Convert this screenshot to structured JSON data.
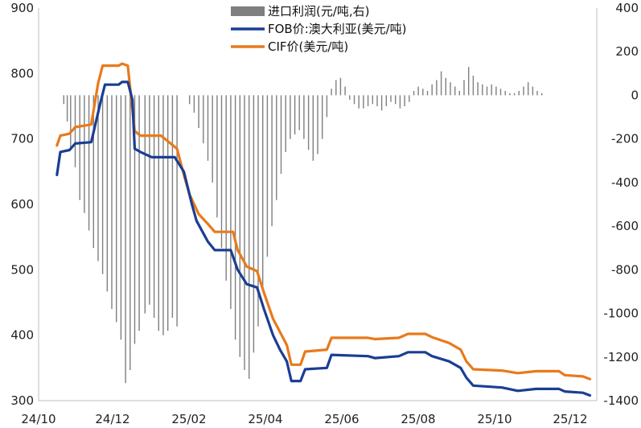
{
  "chart_data": {
    "type": "bar+line",
    "x_ticks": [
      "24/10",
      "24/12",
      "25/02",
      "25/04",
      "25/06",
      "25/08",
      "25/10",
      "25/12"
    ],
    "left_axis": {
      "ticks": [
        300,
        400,
        500,
        600,
        700,
        800,
        900
      ],
      "range": [
        300,
        900
      ]
    },
    "right_axis": {
      "ticks": [
        -1400,
        -1200,
        -1000,
        -800,
        -600,
        -400,
        -200,
        0,
        200,
        400
      ],
      "range": [
        -1400,
        400
      ]
    },
    "grid": false,
    "legend_position": "top-center",
    "series": [
      {
        "name": "进口利润(元/吨,右)",
        "kind": "bar",
        "axis": "right",
        "color": "#7f7f7f",
        "points": [
          [
            "2024-10-20",
            0
          ],
          [
            "2024-10-23",
            -40
          ],
          [
            "2024-10-26",
            -120
          ],
          [
            "2024-10-29",
            -250
          ],
          [
            "2024-11-02",
            -330
          ],
          [
            "2024-11-06",
            -480
          ],
          [
            "2024-11-10",
            -540
          ],
          [
            "2024-11-14",
            -620
          ],
          [
            "2024-11-18",
            -700
          ],
          [
            "2024-11-22",
            -760
          ],
          [
            "2024-11-26",
            -820
          ],
          [
            "2024-11-30",
            -900
          ],
          [
            "2024-12-04",
            -980
          ],
          [
            "2024-12-08",
            -1040
          ],
          [
            "2024-12-12",
            -1120
          ],
          [
            "2024-12-16",
            -1320
          ],
          [
            "2024-12-20",
            -1260
          ],
          [
            "2024-12-24",
            -1140
          ],
          [
            "2024-12-28",
            -1080
          ],
          [
            "2025-01-02",
            -1000
          ],
          [
            "2025-01-06",
            -960
          ],
          [
            "2025-01-10",
            -1020
          ],
          [
            "2025-01-14",
            -1080
          ],
          [
            "2025-01-18",
            -1100
          ],
          [
            "2025-01-22",
            -1080
          ],
          [
            "2025-01-26",
            -1020
          ],
          [
            "2025-01-30",
            -1060
          ],
          [
            "2025-02-10",
            -40
          ],
          [
            "2025-02-14",
            -80
          ],
          [
            "2025-02-18",
            -150
          ],
          [
            "2025-02-22",
            -220
          ],
          [
            "2025-02-26",
            -300
          ],
          [
            "2025-03-02",
            -400
          ],
          [
            "2025-03-06",
            -560
          ],
          [
            "2025-03-10",
            -700
          ],
          [
            "2025-03-14",
            -850
          ],
          [
            "2025-03-18",
            -980
          ],
          [
            "2025-03-22",
            -1120
          ],
          [
            "2025-03-26",
            -1200
          ],
          [
            "2025-03-30",
            -1260
          ],
          [
            "2025-04-03",
            -1300
          ],
          [
            "2025-04-07",
            -1180
          ],
          [
            "2025-04-11",
            -1060
          ],
          [
            "2025-04-15",
            -900
          ],
          [
            "2025-04-19",
            -740
          ],
          [
            "2025-04-23",
            -600
          ],
          [
            "2025-04-27",
            -480
          ],
          [
            "2025-05-01",
            -360
          ],
          [
            "2025-05-05",
            -260
          ],
          [
            "2025-05-09",
            -200
          ],
          [
            "2025-05-13",
            -180
          ],
          [
            "2025-05-17",
            -160
          ],
          [
            "2025-05-21",
            -200
          ],
          [
            "2025-05-25",
            -250
          ],
          [
            "2025-05-29",
            -300
          ],
          [
            "2025-06-02",
            -270
          ],
          [
            "2025-06-06",
            -200
          ],
          [
            "2025-06-10",
            -100
          ],
          [
            "2025-06-14",
            30
          ],
          [
            "2025-06-18",
            70
          ],
          [
            "2025-06-22",
            80
          ],
          [
            "2025-06-26",
            40
          ],
          [
            "2025-06-30",
            -20
          ],
          [
            "2025-07-04",
            -40
          ],
          [
            "2025-07-08",
            -60
          ],
          [
            "2025-07-12",
            -60
          ],
          [
            "2025-07-16",
            -50
          ],
          [
            "2025-07-20",
            -40
          ],
          [
            "2025-07-24",
            -50
          ],
          [
            "2025-07-28",
            -70
          ],
          [
            "2025-08-01",
            -50
          ],
          [
            "2025-08-05",
            -30
          ],
          [
            "2025-08-09",
            -40
          ],
          [
            "2025-08-13",
            -60
          ],
          [
            "2025-08-17",
            -50
          ],
          [
            "2025-08-21",
            -30
          ],
          [
            "2025-08-25",
            20
          ],
          [
            "2025-08-29",
            40
          ],
          [
            "2025-09-02",
            30
          ],
          [
            "2025-09-06",
            20
          ],
          [
            "2025-09-10",
            50
          ],
          [
            "2025-09-14",
            70
          ],
          [
            "2025-09-18",
            110
          ],
          [
            "2025-09-22",
            80
          ],
          [
            "2025-09-26",
            60
          ],
          [
            "2025-09-30",
            40
          ],
          [
            "2025-10-04",
            20
          ],
          [
            "2025-10-08",
            70
          ],
          [
            "2025-10-12",
            130
          ],
          [
            "2025-10-16",
            90
          ],
          [
            "2025-10-20",
            60
          ],
          [
            "2025-10-24",
            50
          ],
          [
            "2025-10-28",
            40
          ],
          [
            "2025-11-01",
            50
          ],
          [
            "2025-11-05",
            40
          ],
          [
            "2025-11-09",
            30
          ],
          [
            "2025-11-13",
            20
          ],
          [
            "2025-11-17",
            10
          ],
          [
            "2025-11-21",
            10
          ],
          [
            "2025-11-25",
            20
          ],
          [
            "2025-11-29",
            40
          ],
          [
            "2025-12-03",
            60
          ],
          [
            "2025-12-07",
            40
          ],
          [
            "2025-12-11",
            20
          ],
          [
            "2025-12-15",
            10
          ],
          [
            "2025-12-19",
            0
          ]
        ]
      },
      {
        "name": "FOB价:澳大利亚(美元/吨)",
        "kind": "line",
        "axis": "left",
        "color": "#1a3e94",
        "points": [
          [
            "2024-10-17",
            645
          ],
          [
            "2024-10-20",
            680
          ],
          [
            "2024-10-28",
            683
          ],
          [
            "2024-11-02",
            693
          ],
          [
            "2024-11-16",
            695
          ],
          [
            "2024-11-24",
            755
          ],
          [
            "2024-11-28",
            783
          ],
          [
            "2024-12-10",
            783
          ],
          [
            "2024-12-13",
            787
          ],
          [
            "2024-12-18",
            787
          ],
          [
            "2024-12-22",
            760
          ],
          [
            "2024-12-24",
            685
          ],
          [
            "2024-12-29",
            680
          ],
          [
            "2025-01-08",
            672
          ],
          [
            "2025-01-28",
            672
          ],
          [
            "2025-02-05",
            650
          ],
          [
            "2025-02-12",
            600
          ],
          [
            "2025-02-16",
            575
          ],
          [
            "2025-02-26",
            543
          ],
          [
            "2025-03-04",
            530
          ],
          [
            "2025-03-18",
            530
          ],
          [
            "2025-03-24",
            500
          ],
          [
            "2025-04-01",
            478
          ],
          [
            "2025-04-10",
            473
          ],
          [
            "2025-04-16",
            440
          ],
          [
            "2025-04-24",
            400
          ],
          [
            "2025-04-30",
            378
          ],
          [
            "2025-05-06",
            360
          ],
          [
            "2025-05-10",
            330
          ],
          [
            "2025-05-18",
            330
          ],
          [
            "2025-05-22",
            348
          ],
          [
            "2025-06-10",
            350
          ],
          [
            "2025-06-14",
            370
          ],
          [
            "2025-07-16",
            368
          ],
          [
            "2025-07-22",
            365
          ],
          [
            "2025-08-12",
            368
          ],
          [
            "2025-08-20",
            374
          ],
          [
            "2025-09-04",
            374
          ],
          [
            "2025-09-10",
            368
          ],
          [
            "2025-09-25",
            360
          ],
          [
            "2025-10-05",
            350
          ],
          [
            "2025-10-10",
            335
          ],
          [
            "2025-10-16",
            323
          ],
          [
            "2025-11-10",
            320
          ],
          [
            "2025-11-24",
            315
          ],
          [
            "2025-12-10",
            318
          ],
          [
            "2025-12-30",
            318
          ],
          [
            "2026-01-04",
            314
          ],
          [
            "2026-01-20",
            312
          ],
          [
            "2026-01-26",
            308
          ]
        ]
      },
      {
        "name": "CIF价(美元/吨)",
        "kind": "line",
        "axis": "left",
        "color": "#e87a1c",
        "points": [
          [
            "2024-10-17",
            690
          ],
          [
            "2024-10-20",
            705
          ],
          [
            "2024-10-28",
            708
          ],
          [
            "2024-11-02",
            718
          ],
          [
            "2024-11-16",
            722
          ],
          [
            "2024-11-22",
            785
          ],
          [
            "2024-11-26",
            812
          ],
          [
            "2024-12-10",
            812
          ],
          [
            "2024-12-13",
            815
          ],
          [
            "2024-12-18",
            812
          ],
          [
            "2024-12-24",
            712
          ],
          [
            "2024-12-29",
            705
          ],
          [
            "2025-01-16",
            705
          ],
          [
            "2025-01-30",
            685
          ],
          [
            "2025-02-05",
            645
          ],
          [
            "2025-02-10",
            615
          ],
          [
            "2025-02-18",
            585
          ],
          [
            "2025-02-26",
            570
          ],
          [
            "2025-03-04",
            558
          ],
          [
            "2025-03-20",
            558
          ],
          [
            "2025-03-24",
            530
          ],
          [
            "2025-04-01",
            505
          ],
          [
            "2025-04-10",
            498
          ],
          [
            "2025-04-16",
            465
          ],
          [
            "2025-04-24",
            425
          ],
          [
            "2025-04-30",
            405
          ],
          [
            "2025-05-06",
            385
          ],
          [
            "2025-05-10",
            355
          ],
          [
            "2025-05-18",
            355
          ],
          [
            "2025-05-22",
            375
          ],
          [
            "2025-06-10",
            378
          ],
          [
            "2025-06-14",
            396
          ],
          [
            "2025-07-16",
            396
          ],
          [
            "2025-07-22",
            394
          ],
          [
            "2025-08-12",
            396
          ],
          [
            "2025-08-20",
            402
          ],
          [
            "2025-09-04",
            402
          ],
          [
            "2025-09-10",
            397
          ],
          [
            "2025-09-25",
            388
          ],
          [
            "2025-10-05",
            378
          ],
          [
            "2025-10-10",
            360
          ],
          [
            "2025-10-16",
            348
          ],
          [
            "2025-11-10",
            346
          ],
          [
            "2025-11-24",
            342
          ],
          [
            "2025-12-10",
            345
          ],
          [
            "2025-12-30",
            345
          ],
          [
            "2026-01-04",
            339
          ],
          [
            "2026-01-20",
            337
          ],
          [
            "2026-01-26",
            333
          ]
        ]
      }
    ]
  }
}
